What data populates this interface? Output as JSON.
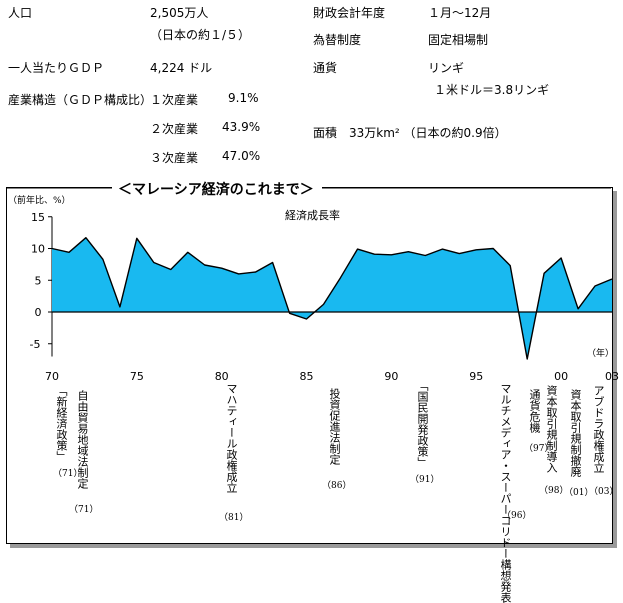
{
  "stats": {
    "population_label": "人口",
    "population_value": "2,505万人",
    "population_note": "（日本の約１/５）",
    "gdp_per_capita_label": "一人当たりＧＤＰ",
    "gdp_per_capita_value": "4,224 ドル",
    "industry_label": "産業構造（ＧＤＰ構成比）",
    "industry": [
      {
        "name": "１次産業",
        "value": "9.1%"
      },
      {
        "name": "２次産業",
        "value": "43.9%"
      },
      {
        "name": "３次産業",
        "value": "47.0%"
      }
    ],
    "fiscal_year_label": "財政会計年度",
    "fiscal_year_value": "１月～12月",
    "exchange_label": "為替制度",
    "exchange_value": "固定相場制",
    "currency_label": "通貨",
    "currency_value": "リンギ",
    "currency_rate": "１米ドル＝3.8リンギ",
    "area": "面積　33万km² （日本の約0.9倍）"
  },
  "section_title": "＜マレーシア経済のこれまで＞",
  "chart_data": {
    "type": "area",
    "title": "経済成長率",
    "ylabel": "（前年比、%）",
    "xlabel": "（年）",
    "ylim": [
      -7,
      15
    ],
    "yticks": [
      15,
      10,
      5,
      0,
      -5
    ],
    "xticks": [
      {
        "year": 1970,
        "label": "70"
      },
      {
        "year": 1975,
        "label": "75"
      },
      {
        "year": 1980,
        "label": "80"
      },
      {
        "year": 1985,
        "label": "85"
      },
      {
        "year": 1990,
        "label": "90"
      },
      {
        "year": 1995,
        "label": "95"
      },
      {
        "year": 2000,
        "label": "00"
      },
      {
        "year": 2003,
        "label": "03"
      }
    ],
    "fill_color": "#19b9f0",
    "line_color": "#000000",
    "series": [
      {
        "x": [
          1970,
          1971,
          1972,
          1973,
          1974,
          1975,
          1976,
          1977,
          1978,
          1979,
          1980,
          1981,
          1982,
          1983,
          1984,
          1985,
          1986,
          1987,
          1988,
          1989,
          1990,
          1991,
          1992,
          1993,
          1994,
          1995,
          1996,
          1997,
          1998,
          1999,
          2000,
          2001,
          2002,
          2003
        ],
        "values": [
          10.0,
          9.4,
          11.7,
          8.3,
          0.8,
          11.6,
          7.8,
          6.7,
          9.4,
          7.4,
          6.9,
          6.0,
          6.3,
          7.8,
          -0.2,
          -1.1,
          1.2,
          5.4,
          9.9,
          9.1,
          9.0,
          9.5,
          8.9,
          9.9,
          9.2,
          9.8,
          10.0,
          7.3,
          -7.4,
          6.1,
          8.5,
          0.5,
          4.1,
          5.2
        ]
      }
    ],
    "annotations": [
      {
        "text": "「新経済政策」",
        "year_note": "（71）"
      },
      {
        "text": "自由貿易地域法制定",
        "year_note": "（71）"
      },
      {
        "text": "マハティール政権成立",
        "year_note": "（81）"
      },
      {
        "text": "投資促進法制定",
        "year_note": "（86）"
      },
      {
        "text": "「国民開発政策」",
        "year_note": "（91）"
      },
      {
        "text": "マルチメディア・スーパーコリドー構想発表",
        "year_note": "（96）"
      },
      {
        "text": "通貨危機",
        "year_note": "（97）"
      },
      {
        "text": "資本取引規制導入",
        "year_note": "（98）"
      },
      {
        "text": "資本取引規制撤廃",
        "year_note": "（01）"
      },
      {
        "text": "アブドラ政権成立",
        "year_note": "（03）"
      }
    ]
  }
}
